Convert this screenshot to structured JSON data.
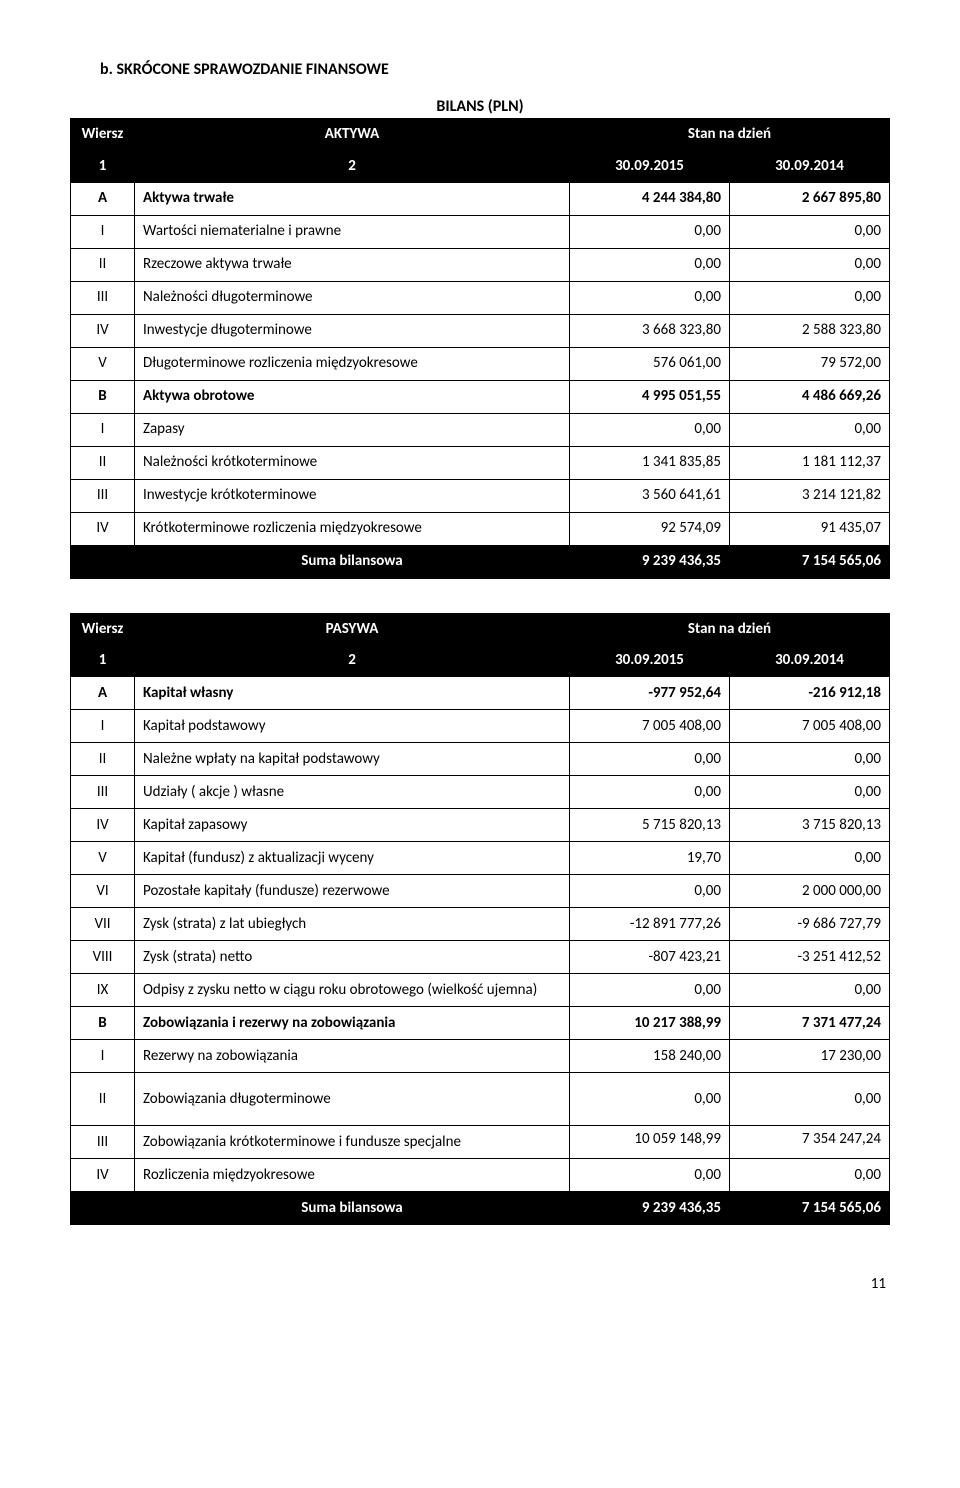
{
  "section_title": "b.   SKRÓCONE SPRAWOZDANIE FINANSOWE",
  "table_super": "BILANS (PLN)",
  "aktywa": {
    "headers": [
      "Wiersz",
      "AKTYWA",
      "Stan na dzień"
    ],
    "subheaders": [
      "1",
      "2",
      "30.09.2015",
      "30.09.2014"
    ],
    "rows": [
      {
        "idx": "A",
        "label": "Aktywa trwałe",
        "v1": "4 244 384,80",
        "v2": "2 667 895,80",
        "bold": true
      },
      {
        "idx": "I",
        "label": "Wartości niematerialne i prawne",
        "v1": "0,00",
        "v2": "0,00"
      },
      {
        "idx": "II",
        "label": "Rzeczowe aktywa trwałe",
        "v1": "0,00",
        "v2": "0,00"
      },
      {
        "idx": "III",
        "label": "Należności długoterminowe",
        "v1": "0,00",
        "v2": "0,00"
      },
      {
        "idx": "IV",
        "label": "Inwestycje długoterminowe",
        "v1": "3 668 323,80",
        "v2": "2 588 323,80"
      },
      {
        "idx": "V",
        "label": "Długoterminowe rozliczenia międzyokresowe",
        "v1": "576 061,00",
        "v2": "79 572,00"
      },
      {
        "idx": "B",
        "label": "Aktywa obrotowe",
        "v1": "4 995 051,55",
        "v2": "4 486 669,26",
        "bold": true
      },
      {
        "idx": "I",
        "label": "Zapasy",
        "v1": "0,00",
        "v2": "0,00"
      },
      {
        "idx": "II",
        "label": "Należności krótkoterminowe",
        "v1": "1 341 835,85",
        "v2": "1 181 112,37"
      },
      {
        "idx": "III",
        "label": "Inwestycje krótkoterminowe",
        "v1": "3 560 641,61",
        "v2": "3 214 121,82"
      },
      {
        "idx": "IV",
        "label": "Krótkoterminowe rozliczenia międzyokresowe",
        "v1": "92 574,09",
        "v2": "91 435,07"
      }
    ],
    "sum": {
      "label": "Suma bilansowa",
      "v1": "9 239 436,35",
      "v2": "7 154 565,06"
    }
  },
  "pasywa": {
    "headers": [
      "Wiersz",
      "PASYWA",
      "Stan na dzień"
    ],
    "subheaders": [
      "1",
      "2",
      "30.09.2015",
      "30.09.2014"
    ],
    "rows": [
      {
        "idx": "A",
        "label": "Kapitał własny",
        "v1": "-977 952,64",
        "v2": "-216 912,18",
        "bold": true
      },
      {
        "idx": "I",
        "label": "Kapitał podstawowy",
        "v1": "7 005 408,00",
        "v2": "7 005 408,00"
      },
      {
        "idx": "II",
        "label": "Należne wpłaty na kapitał podstawowy",
        "v1": "0,00",
        "v2": "0,00"
      },
      {
        "idx": "III",
        "label": "Udziały ( akcje ) własne",
        "v1": "0,00",
        "v2": "0,00"
      },
      {
        "idx": "IV",
        "label": "Kapitał zapasowy",
        "v1": "5 715 820,13",
        "v2": "3 715 820,13"
      },
      {
        "idx": "V",
        "label": "Kapitał (fundusz) z aktualizacji wyceny",
        "v1": "19,70",
        "v2": "0,00"
      },
      {
        "idx": "VI",
        "label": "Pozostałe kapitały (fundusze) rezerwowe",
        "v1": "0,00",
        "v2": "2 000 000,00"
      },
      {
        "idx": "VII",
        "label": "Zysk (strata) z lat ubiegłych",
        "v1": "-12 891 777,26",
        "v2": "-9 686 727,79"
      },
      {
        "idx": "VIII",
        "label": "Zysk (strata) netto",
        "v1": "-807 423,21",
        "v2": "-3 251 412,52"
      },
      {
        "idx": "IX",
        "label": "Odpisy z zysku netto w ciągu roku obrotowego (wielkość ujemna)",
        "v1": "0,00",
        "v2": "0,00"
      },
      {
        "idx": "B",
        "label": "Zobowiązania i rezerwy na zobowiązania",
        "v1": "10 217 388,99",
        "v2": "7 371 477,24",
        "bold": true
      },
      {
        "idx": "I",
        "label": "Rezerwy na zobowiązania",
        "v1": "158 240,00",
        "v2": "17 230,00"
      },
      {
        "idx": "II",
        "label": "Zobowiązania długoterminowe",
        "v1": "0,00",
        "v2": "0,00",
        "tall": true
      },
      {
        "idx": "III",
        "label": "Zobowiązania krótkoterminowe i fundusze specjalne",
        "v1": "10 059 148,99",
        "v2": "7 354 247,24",
        "valign": "top"
      },
      {
        "idx": "IV",
        "label": "Rozliczenia międzyokresowe",
        "v1": "0,00",
        "v2": "0,00"
      }
    ],
    "sum": {
      "label": "Suma bilansowa",
      "v1": "9 239 436,35",
      "v2": "7 154 565,06"
    }
  },
  "page_number": "11",
  "colwidths": {
    "idx": "64px",
    "label": "auto",
    "v1": "160px",
    "v2": "160px"
  }
}
